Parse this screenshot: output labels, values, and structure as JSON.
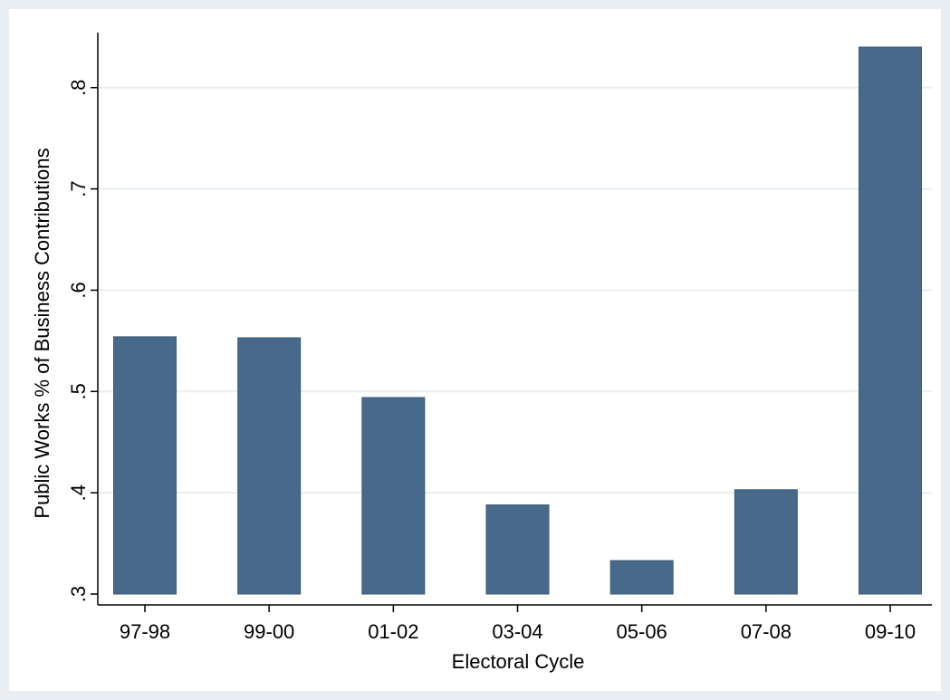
{
  "chart_data": {
    "type": "bar",
    "title": "",
    "xlabel": "Electoral Cycle",
    "ylabel": "Public Works % of Business Contributions",
    "categories": [
      "97-98",
      "99-00",
      "01-02",
      "03-04",
      "05-06",
      "07-08",
      "09-10"
    ],
    "values": [
      0.554,
      0.553,
      0.494,
      0.388,
      0.333,
      0.403,
      0.84
    ],
    "ylim": [
      0.3,
      0.84
    ],
    "yticks": [
      0.3,
      0.4,
      0.5,
      0.6,
      0.7,
      0.8
    ],
    "ytick_labels": [
      ".3",
      ".4",
      ".5",
      ".6",
      ".7",
      ".8"
    ],
    "grid": "horizontal",
    "legend": "none"
  },
  "colors": {
    "outer_background": "#e8eef1",
    "plot_background": "#ffffff",
    "bar_fill": "#476a8b",
    "bar_edge": "#3b5a76",
    "grid": "#e8eef1",
    "axis": "#000000"
  }
}
